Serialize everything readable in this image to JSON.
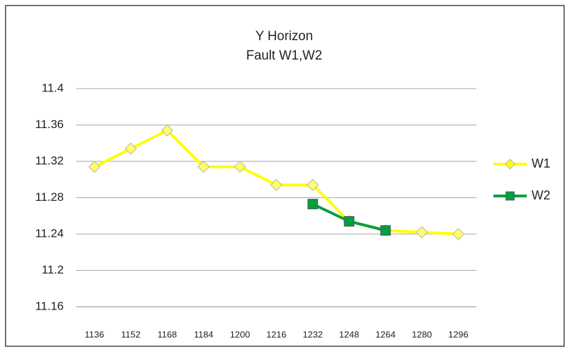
{
  "chart_data": {
    "type": "line",
    "title": "Y Horizon",
    "subtitle": "Fault W1,W2",
    "categories": [
      "1136",
      "1152",
      "1168",
      "1184",
      "1200",
      "1216",
      "1232",
      "1248",
      "1264",
      "1280",
      "1296"
    ],
    "series": [
      {
        "name": "W1",
        "color": "#ffff00",
        "marker": "diamond",
        "values": [
          11.314,
          11.334,
          11.354,
          11.314,
          11.314,
          11.294,
          11.294,
          11.254,
          11.244,
          11.242,
          11.24
        ]
      },
      {
        "name": "W2",
        "color": "#00a040",
        "marker": "square",
        "values": [
          null,
          null,
          null,
          null,
          null,
          null,
          11.273,
          11.254,
          11.244,
          null,
          null
        ]
      }
    ],
    "ylim": [
      11.16,
      11.4
    ],
    "yticks": [
      11.16,
      11.2,
      11.24,
      11.28,
      11.32,
      11.36,
      11.4
    ],
    "grid": true,
    "legend": "right"
  }
}
